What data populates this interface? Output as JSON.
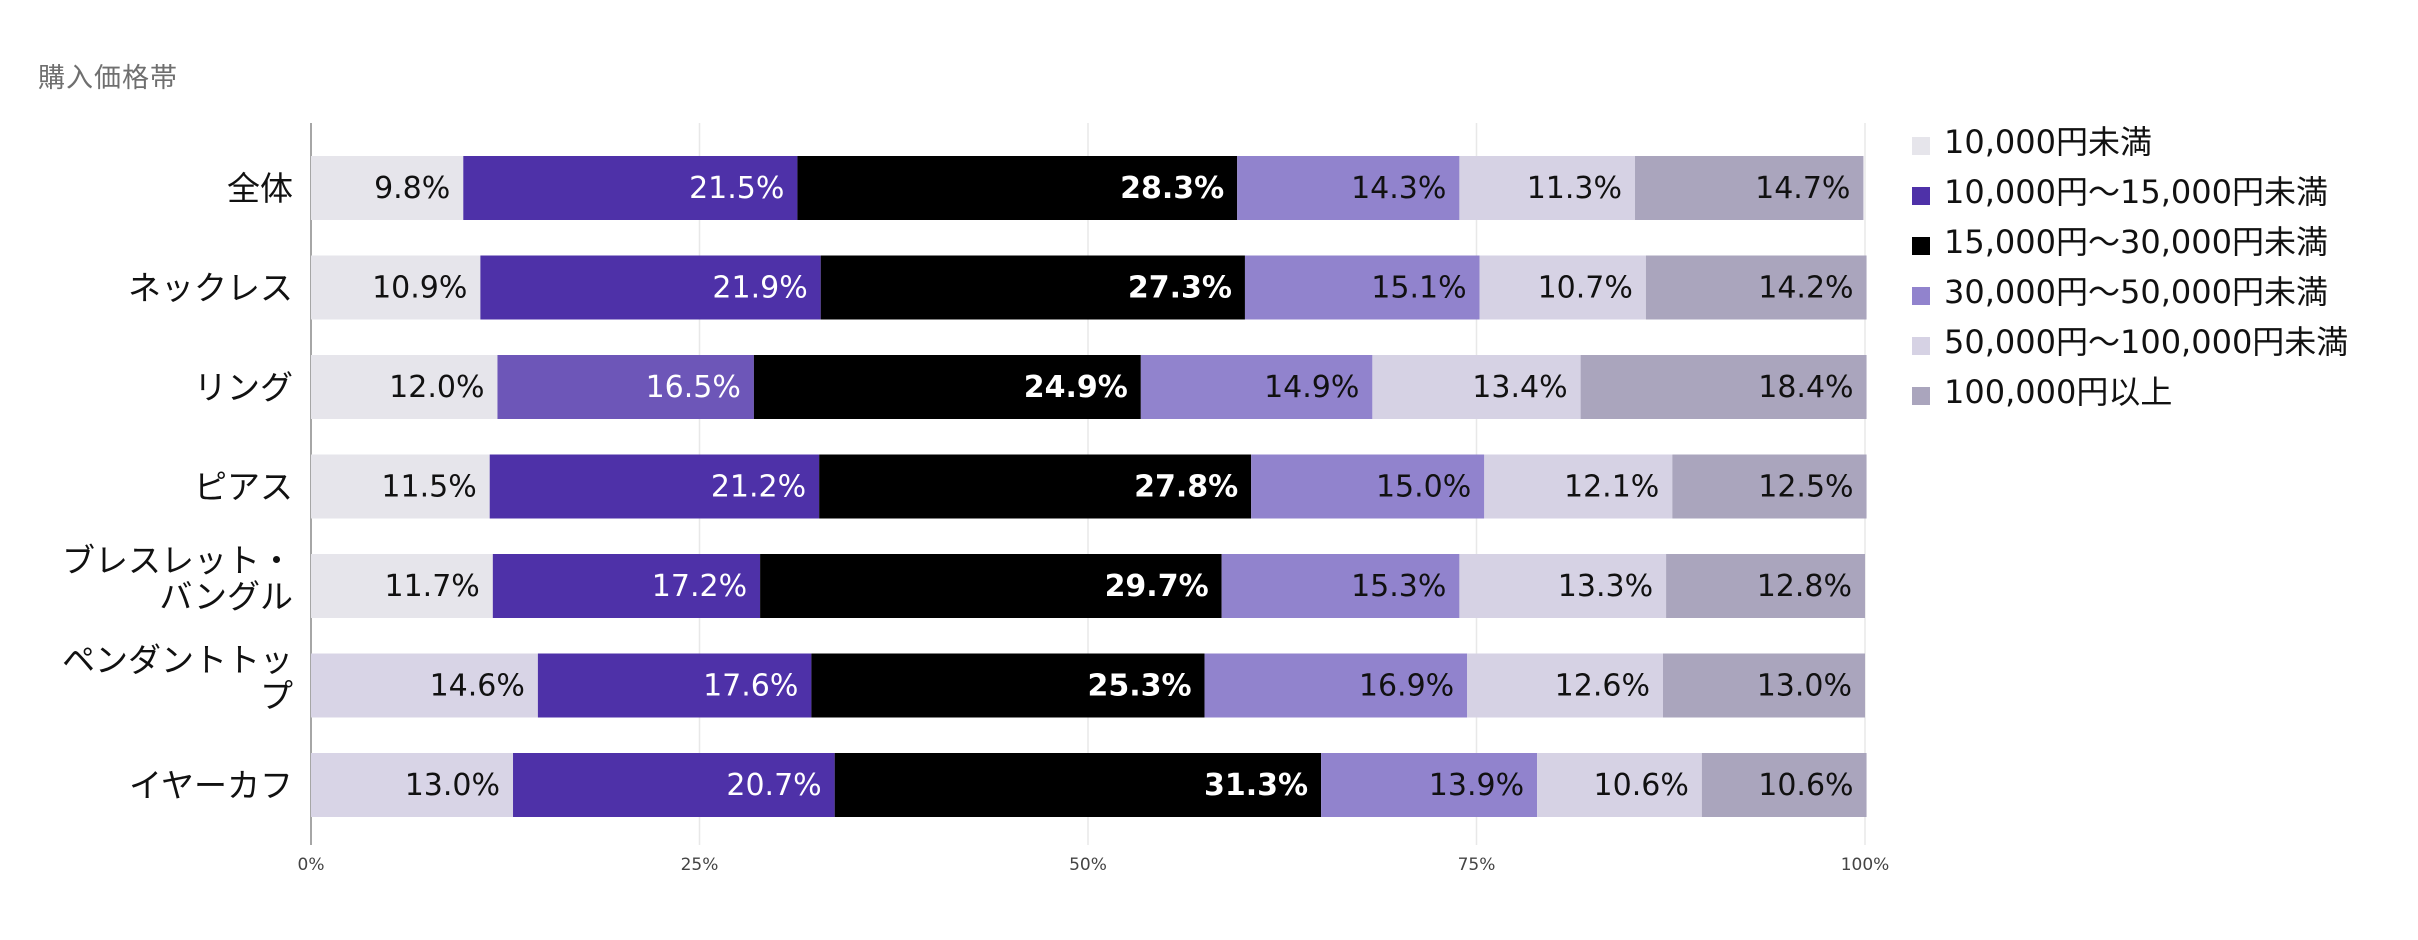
{
  "chart_data": {
    "type": "bar",
    "orientation": "horizontal",
    "stacked": true,
    "percent_stacked": true,
    "title": "購入価格帯",
    "xlabel": "",
    "ylabel": "",
    "xlim": [
      0,
      100
    ],
    "x_ticks": [
      "0%",
      "25%",
      "50%",
      "75%",
      "100%"
    ],
    "grid": true,
    "legend_position": "right",
    "categories": [
      [
        "全体"
      ],
      [
        "ネックレス"
      ],
      [
        "リング"
      ],
      [
        "ピアス"
      ],
      [
        "ブレスレット・",
        "バングル"
      ],
      [
        "ペンダントトッ",
        "プ"
      ],
      [
        "イヤーカフ"
      ]
    ],
    "series": [
      {
        "name": "10,000円未満",
        "color": "#e6e5eb",
        "values": [
          9.8,
          10.9,
          12.0,
          11.5,
          11.7,
          14.6,
          13.0
        ]
      },
      {
        "name": "10,000円〜15,000円未満",
        "color": "#4e31a8",
        "values": [
          21.5,
          21.9,
          16.5,
          21.2,
          17.2,
          17.6,
          20.7
        ]
      },
      {
        "name": "15,000円〜30,000円未満",
        "color": "#000000",
        "values": [
          28.3,
          27.3,
          24.9,
          27.8,
          29.7,
          25.3,
          31.3
        ]
      },
      {
        "name": "30,000円〜50,000円未満",
        "color": "#9183cd",
        "values": [
          14.3,
          15.1,
          14.9,
          15.0,
          15.3,
          16.9,
          13.9
        ]
      },
      {
        "name": "50,000円〜100,000円未満",
        "color": "#d6d2e4",
        "values": [
          11.3,
          10.7,
          13.4,
          12.1,
          13.3,
          12.6,
          10.6
        ]
      },
      {
        "name": "100,000円以上",
        "color": "#aaa5bd",
        "values": [
          14.7,
          14.2,
          18.4,
          12.5,
          12.8,
          13.0,
          10.6
        ]
      }
    ],
    "labels": [
      [
        "9.8%",
        "21.5%",
        "28.3%",
        "14.3%",
        "11.3%",
        "14.7%"
      ],
      [
        "10.9%",
        "21.9%",
        "27.3%",
        "15.1%",
        "10.7%",
        "14.2%"
      ],
      [
        "12.0%",
        "16.5%",
        "24.9%",
        "14.9%",
        "13.4%",
        "18.4%"
      ],
      [
        "11.5%",
        "21.2%",
        "27.8%",
        "15.0%",
        "12.1%",
        "12.5%"
      ],
      [
        "11.7%",
        "17.2%",
        "29.7%",
        "15.3%",
        "13.3%",
        "12.8%"
      ],
      [
        "14.6%",
        "17.6%",
        "25.3%",
        "16.9%",
        "12.6%",
        "13.0%"
      ],
      [
        "13.0%",
        "20.7%",
        "31.3%",
        "13.9%",
        "10.6%",
        "10.6%"
      ]
    ],
    "label_colors": [
      "#111111",
      "#ffffff",
      "#ffffff",
      "#111111",
      "#111111",
      "#111111"
    ],
    "highlight_override": {
      "row_index": 2,
      "series_index": 1,
      "color": "#6d56b8"
    },
    "light_first_override_rows": [
      5,
      6
    ],
    "light_first_override_color": "#d8d4e6"
  }
}
